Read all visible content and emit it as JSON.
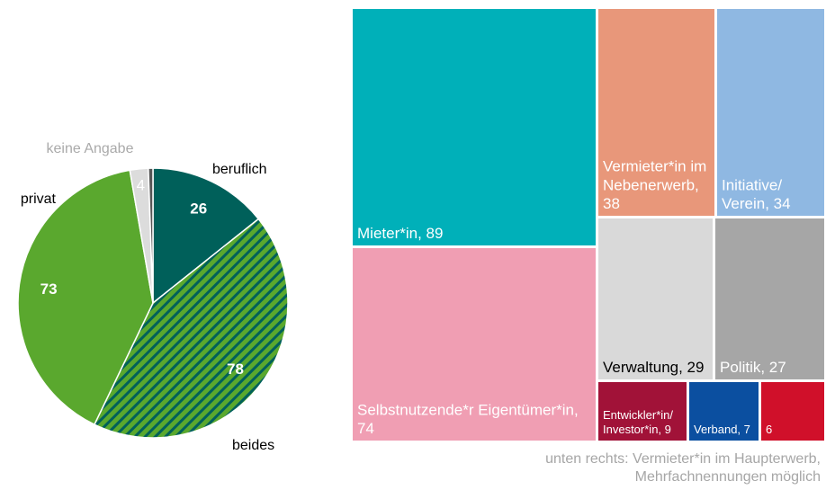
{
  "chart_data": [
    {
      "type": "pie",
      "categories": [
        "beruflich",
        "beides",
        "privat",
        "keine Angabe",
        null
      ],
      "values": [
        26,
        78,
        73,
        4,
        1
      ],
      "colors": [
        "#00605a",
        "#5aa82e",
        "#5aa82e",
        "#dcdcdc",
        "#555555"
      ],
      "patterns": [
        null,
        "hatch",
        null,
        null,
        null
      ]
    },
    {
      "type": "treemap",
      "values": [
        89,
        74,
        38,
        34,
        29,
        27,
        9,
        7,
        6
      ],
      "value_labels": [
        "Mieter*in, 89",
        "Selbstnutzende*r Eigentümer*in, 74",
        "Vermieter*in im Nebenerwerb, 38",
        "Initiative/ Verein, 34",
        "Verwaltung, 29",
        "Politik, 27",
        "Entwickler*in/ Investor*in, 9",
        "Verband, 7",
        "6"
      ],
      "colors": [
        "#00b0b9",
        "#f09eb3",
        "#e8977a",
        "#8fb8e2",
        "#d9d9d9",
        "#a6a6a6",
        "#a11238",
        "#0b4fa0",
        "#d0102a"
      ],
      "note": [
        "unten rechts: Vermieter*in im Haupterwerb,",
        "Mehrfachnennungen möglich"
      ]
    }
  ]
}
